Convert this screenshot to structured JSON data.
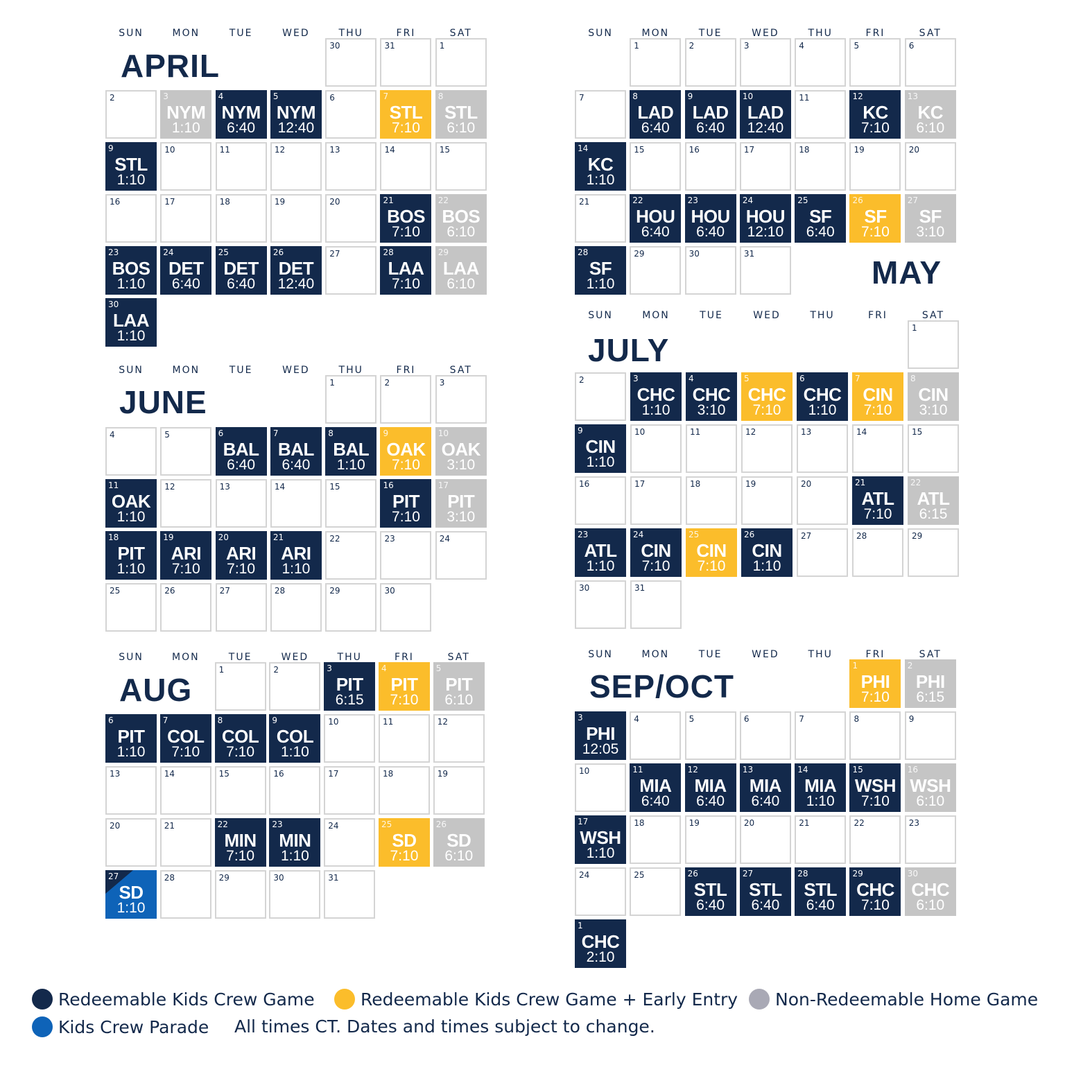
{
  "weekdays": [
    "SUN",
    "MON",
    "TUE",
    "WED",
    "THU",
    "FRI",
    "SAT"
  ],
  "colors": {
    "n": "#13294b",
    "y": "#fbbd2b",
    "g": "#c5c5c5",
    "p": "#0e63b8"
  },
  "months": [
    {
      "id": "april",
      "title": "APRIL",
      "weeks": [
        [
          null,
          null,
          null,
          null,
          [
            30
          ],
          [
            31
          ],
          [
            1
          ]
        ],
        [
          [
            2
          ],
          [
            3,
            "NYM",
            "1:10",
            "g"
          ],
          [
            4,
            "NYM",
            "6:40",
            "n"
          ],
          [
            5,
            "NYM",
            "12:40",
            "n"
          ],
          [
            6
          ],
          [
            7,
            "STL",
            "7:10",
            "y"
          ],
          [
            8,
            "STL",
            "6:10",
            "g"
          ]
        ],
        [
          [
            9,
            "STL",
            "1:10",
            "n"
          ],
          [
            10
          ],
          [
            11
          ],
          [
            12
          ],
          [
            13
          ],
          [
            14
          ],
          [
            15
          ]
        ],
        [
          [
            16
          ],
          [
            17
          ],
          [
            18
          ],
          [
            19
          ],
          [
            20
          ],
          [
            21,
            "BOS",
            "7:10",
            "n"
          ],
          [
            22,
            "BOS",
            "6:10",
            "g"
          ]
        ],
        [
          [
            23,
            "BOS",
            "1:10",
            "n"
          ],
          [
            24,
            "DET",
            "6:40",
            "n"
          ],
          [
            25,
            "DET",
            "6:40",
            "n"
          ],
          [
            26,
            "DET",
            "12:40",
            "n"
          ],
          [
            27
          ],
          [
            28,
            "LAA",
            "7:10",
            "n"
          ],
          [
            29,
            "LAA",
            "6:10",
            "g"
          ]
        ],
        [
          [
            30,
            "LAA",
            "1:10",
            "n"
          ],
          null,
          null,
          null,
          null,
          null,
          null
        ]
      ]
    },
    {
      "id": "may",
      "title": "MAY",
      "weeks": [
        [
          null,
          [
            1
          ],
          [
            2
          ],
          [
            3
          ],
          [
            4
          ],
          [
            5
          ],
          [
            6
          ]
        ],
        [
          [
            7
          ],
          [
            8,
            "LAD",
            "6:40",
            "n"
          ],
          [
            9,
            "LAD",
            "6:40",
            "n"
          ],
          [
            10,
            "LAD",
            "12:40",
            "n"
          ],
          [
            11
          ],
          [
            12,
            "KC",
            "7:10",
            "n"
          ],
          [
            13,
            "KC",
            "6:10",
            "g"
          ]
        ],
        [
          [
            14,
            "KC",
            "1:10",
            "n"
          ],
          [
            15
          ],
          [
            16
          ],
          [
            17
          ],
          [
            18
          ],
          [
            19
          ],
          [
            20
          ]
        ],
        [
          [
            21
          ],
          [
            22,
            "HOU",
            "6:40",
            "n"
          ],
          [
            23,
            "HOU",
            "6:40",
            "n"
          ],
          [
            24,
            "HOU",
            "12:10",
            "n"
          ],
          [
            25,
            "SF",
            "6:40",
            "n"
          ],
          [
            26,
            "SF",
            "7:10",
            "y"
          ],
          [
            27,
            "SF",
            "3:10",
            "g"
          ]
        ],
        [
          [
            28,
            "SF",
            "1:10",
            "n"
          ],
          [
            29
          ],
          [
            30
          ],
          [
            31
          ],
          null,
          null,
          null
        ]
      ]
    },
    {
      "id": "june",
      "title": "JUNE",
      "weeks": [
        [
          null,
          null,
          null,
          null,
          [
            1
          ],
          [
            2
          ],
          [
            3
          ]
        ],
        [
          [
            4
          ],
          [
            5
          ],
          [
            6,
            "BAL",
            "6:40",
            "n"
          ],
          [
            7,
            "BAL",
            "6:40",
            "n"
          ],
          [
            8,
            "BAL",
            "1:10",
            "n"
          ],
          [
            9,
            "OAK",
            "7:10",
            "y"
          ],
          [
            10,
            "OAK",
            "3:10",
            "g"
          ]
        ],
        [
          [
            11,
            "OAK",
            "1:10",
            "n"
          ],
          [
            12
          ],
          [
            13
          ],
          [
            14
          ],
          [
            15
          ],
          [
            16,
            "PIT",
            "7:10",
            "n"
          ],
          [
            17,
            "PIT",
            "3:10",
            "g"
          ]
        ],
        [
          [
            18,
            "PIT",
            "1:10",
            "n"
          ],
          [
            19,
            "ARI",
            "7:10",
            "n"
          ],
          [
            20,
            "ARI",
            "7:10",
            "n"
          ],
          [
            21,
            "ARI",
            "1:10",
            "n"
          ],
          [
            22
          ],
          [
            23
          ],
          [
            24
          ]
        ],
        [
          [
            25
          ],
          [
            26
          ],
          [
            27
          ],
          [
            28
          ],
          [
            29
          ],
          [
            30
          ],
          null
        ]
      ]
    },
    {
      "id": "july",
      "title": "JULY",
      "weeks": [
        [
          null,
          null,
          null,
          null,
          null,
          null,
          [
            1
          ]
        ],
        [
          [
            2
          ],
          [
            3,
            "CHC",
            "1:10",
            "n"
          ],
          [
            4,
            "CHC",
            "3:10",
            "n"
          ],
          [
            5,
            "CHC",
            "7:10",
            "y"
          ],
          [
            6,
            "CHC",
            "1:10",
            "n"
          ],
          [
            7,
            "CIN",
            "7:10",
            "y"
          ],
          [
            8,
            "CIN",
            "3:10",
            "g"
          ]
        ],
        [
          [
            9,
            "CIN",
            "1:10",
            "n"
          ],
          [
            10
          ],
          [
            11
          ],
          [
            12
          ],
          [
            13
          ],
          [
            14
          ],
          [
            15
          ]
        ],
        [
          [
            16
          ],
          [
            17
          ],
          [
            18
          ],
          [
            19
          ],
          [
            20
          ],
          [
            21,
            "ATL",
            "7:10",
            "n"
          ],
          [
            22,
            "ATL",
            "6:15",
            "g"
          ]
        ],
        [
          [
            23,
            "ATL",
            "1:10",
            "n"
          ],
          [
            24,
            "CIN",
            "7:10",
            "n"
          ],
          [
            25,
            "CIN",
            "7:10",
            "y"
          ],
          [
            26,
            "CIN",
            "1:10",
            "n"
          ],
          [
            27
          ],
          [
            28
          ],
          [
            29
          ]
        ],
        [
          [
            30
          ],
          [
            31
          ],
          null,
          null,
          null,
          null,
          null
        ]
      ]
    },
    {
      "id": "aug",
      "title": "AUG",
      "weeks": [
        [
          null,
          null,
          [
            1
          ],
          [
            2
          ],
          [
            3,
            "PIT",
            "6:15",
            "n"
          ],
          [
            4,
            "PIT",
            "7:10",
            "y"
          ],
          [
            5,
            "PIT",
            "6:10",
            "g"
          ]
        ],
        [
          [
            6,
            "PIT",
            "1:10",
            "n"
          ],
          [
            7,
            "COL",
            "7:10",
            "n"
          ],
          [
            8,
            "COL",
            "7:10",
            "n"
          ],
          [
            9,
            "COL",
            "1:10",
            "n"
          ],
          [
            10
          ],
          [
            11
          ],
          [
            12
          ]
        ],
        [
          [
            13
          ],
          [
            14
          ],
          [
            15
          ],
          [
            16
          ],
          [
            17
          ],
          [
            18
          ],
          [
            19
          ]
        ],
        [
          [
            20
          ],
          [
            21
          ],
          [
            22,
            "MIN",
            "7:10",
            "n"
          ],
          [
            23,
            "MIN",
            "1:10",
            "n"
          ],
          [
            24
          ],
          [
            25,
            "SD",
            "7:10",
            "y"
          ],
          [
            26,
            "SD",
            "6:10",
            "g"
          ]
        ],
        [
          [
            27,
            "SD",
            "1:10",
            "p"
          ],
          [
            28
          ],
          [
            29
          ],
          [
            30
          ],
          [
            31
          ],
          null,
          null
        ]
      ]
    },
    {
      "id": "sepoct",
      "title": "SEP/OCT",
      "weeks": [
        [
          null,
          null,
          null,
          null,
          null,
          [
            1,
            "PHI",
            "7:10",
            "y"
          ],
          [
            2,
            "PHI",
            "6:15",
            "g"
          ]
        ],
        [
          [
            3,
            "PHI",
            "12:05",
            "n"
          ],
          [
            4
          ],
          [
            5
          ],
          [
            6
          ],
          [
            7
          ],
          [
            8
          ],
          [
            9
          ]
        ],
        [
          [
            10
          ],
          [
            11,
            "MIA",
            "6:40",
            "n"
          ],
          [
            12,
            "MIA",
            "6:40",
            "n"
          ],
          [
            13,
            "MIA",
            "6:40",
            "n"
          ],
          [
            14,
            "MIA",
            "1:10",
            "n"
          ],
          [
            15,
            "WSH",
            "7:10",
            "n"
          ],
          [
            16,
            "WSH",
            "6:10",
            "g"
          ]
        ],
        [
          [
            17,
            "WSH",
            "1:10",
            "n"
          ],
          [
            18
          ],
          [
            19
          ],
          [
            20
          ],
          [
            21
          ],
          [
            22
          ],
          [
            23
          ]
        ],
        [
          [
            24
          ],
          [
            25
          ],
          [
            26,
            "STL",
            "6:40",
            "n"
          ],
          [
            27,
            "STL",
            "6:40",
            "n"
          ],
          [
            28,
            "STL",
            "6:40",
            "n"
          ],
          [
            29,
            "CHC",
            "7:10",
            "n"
          ],
          [
            30,
            "CHC",
            "6:10",
            "g"
          ]
        ],
        [
          [
            1,
            "CHC",
            "2:10",
            "n"
          ],
          null,
          null,
          null,
          null,
          null,
          null
        ]
      ]
    }
  ],
  "legend": {
    "navy": "Redeemable Kids Crew Game",
    "yellow": "Redeemable Kids Crew Game + Early Entry",
    "gray": "Non-Redeemable Home Game",
    "blue": "Kids Crew Parade",
    "note": "All times CT. Dates and times subject to change."
  }
}
